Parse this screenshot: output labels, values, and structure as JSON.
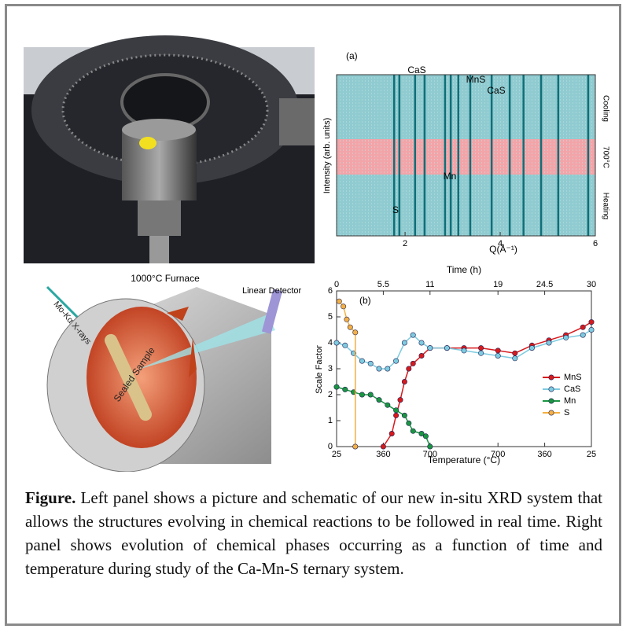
{
  "schematic": {
    "furnace_label": "1000°C Furnace",
    "xray_label": "Mo-Kα X-rays",
    "detector_label": "Linear Detector",
    "sample_label": "Sealed Sample"
  },
  "panel_a": {
    "tag": "(a)",
    "x_label": "Q(Å⁻¹)",
    "y_label": "Intensity (arb. units)",
    "xlim": [
      0.56,
      6
    ],
    "xticks": [
      2,
      4,
      6
    ],
    "peaks": [
      1.77,
      1.88,
      2.21,
      2.41,
      2.84,
      2.96,
      3.12,
      3.37,
      3.82,
      4.2,
      4.49,
      4.86,
      5.22,
      5.85
    ],
    "peak_labels": [
      "CaS",
      "MnS",
      "CaS",
      "Mn",
      "S"
    ],
    "right_labels": [
      "Cooling",
      "700°C",
      "Heating"
    ]
  },
  "panel_b": {
    "type": "scatter",
    "tag": "(b)",
    "top_label": "Time (h)",
    "bottom_label": "Temperature (°C)",
    "y_label": "Scale Factor",
    "xlim": [
      0,
      30
    ],
    "top_ticks": [
      0,
      5.5,
      11,
      19,
      24.5,
      30
    ],
    "bottom_ticks": [
      {
        "value": 0,
        "label": "25"
      },
      {
        "value": 5.5,
        "label": "360"
      },
      {
        "value": 11,
        "label": "700"
      },
      {
        "value": 19,
        "label": "700"
      },
      {
        "value": 24.5,
        "label": "360"
      },
      {
        "value": 30,
        "label": "25"
      }
    ],
    "ylim": [
      0,
      6
    ],
    "yticks": [
      0,
      1,
      2,
      3,
      4,
      5,
      6
    ],
    "series": [
      {
        "name": "MnS",
        "color": "#d7191c",
        "x": [
          5.5,
          6.5,
          7,
          7.5,
          8,
          8.5,
          9,
          10,
          11,
          13,
          15,
          17,
          19,
          21,
          23,
          25,
          27,
          29,
          30
        ],
        "values": [
          0,
          0.5,
          1.2,
          1.8,
          2.5,
          3,
          3.2,
          3.5,
          3.8,
          3.8,
          3.8,
          3.8,
          3.7,
          3.6,
          3.9,
          4.1,
          4.3,
          4.6,
          4.8
        ]
      },
      {
        "name": "CaS",
        "color": "#7ecbe0",
        "x": [
          0,
          1,
          2,
          3,
          4,
          5,
          6,
          7,
          8,
          9,
          10,
          11,
          13,
          15,
          17,
          19,
          21,
          23,
          25,
          27,
          29,
          30
        ],
        "values": [
          4.0,
          3.9,
          3.6,
          3.3,
          3.2,
          3.0,
          3.0,
          3.3,
          4.0,
          4.3,
          4.0,
          3.8,
          3.8,
          3.7,
          3.6,
          3.5,
          3.4,
          3.8,
          4.0,
          4.2,
          4.3,
          4.5
        ]
      },
      {
        "name": "Mn",
        "color": "#1a9641",
        "x": [
          0,
          1,
          2,
          3,
          4,
          5,
          6,
          7,
          8,
          8.5,
          9,
          10,
          10.5,
          11
        ],
        "values": [
          2.3,
          2.2,
          2.1,
          2.0,
          2.0,
          1.8,
          1.6,
          1.4,
          1.2,
          0.9,
          0.6,
          0.5,
          0.4,
          0
        ]
      },
      {
        "name": "S",
        "color": "#f4b042",
        "x": [
          0.3,
          0.8,
          1.2,
          1.6,
          2.2,
          2.2
        ],
        "values": [
          5.6,
          5.4,
          4.9,
          4.6,
          4.4,
          0
        ]
      }
    ]
  },
  "caption": {
    "lead": "Figure.",
    "text": " Left panel shows a picture and schematic of our new in-situ XRD system that allows the structures evolving in chemical reactions to be followed in real time. Right panel shows evolution of chemical phases occurring as a function of time and temperature during study of the Ca-Mn-S ternary system."
  }
}
